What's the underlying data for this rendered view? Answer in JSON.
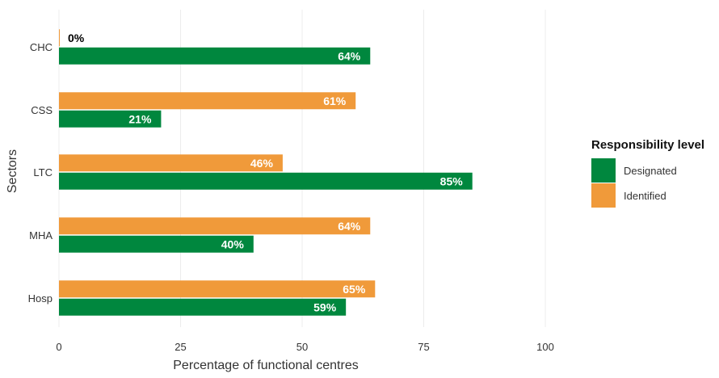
{
  "chart_data": {
    "type": "bar",
    "orientation": "horizontal",
    "title": "",
    "xlabel": "Percentage of functional centres",
    "ylabel": "Sectors",
    "xlim": [
      0,
      100
    ],
    "x_ticks": [
      "0",
      "25",
      "50",
      "75",
      "100"
    ],
    "x_tick_values": [
      0,
      25,
      50,
      75,
      100
    ],
    "grid": true,
    "categories": [
      "CHC",
      "CSS",
      "LTC",
      "MHA",
      "Hosp"
    ],
    "series": [
      {
        "name": "Identified",
        "color": "#F09A3A",
        "values": [
          0,
          61,
          46,
          64,
          65
        ],
        "labels": [
          "0%",
          "61%",
          "46%",
          "64%",
          "65%"
        ]
      },
      {
        "name": "Designated",
        "color": "#00873E",
        "values": [
          64,
          21,
          85,
          40,
          59
        ],
        "labels": [
          "64%",
          "21%",
          "85%",
          "40%",
          "59%"
        ]
      }
    ],
    "legend": {
      "title": "Responsibility level",
      "placement": "right",
      "items": [
        {
          "label": "Designated",
          "color": "#00873E"
        },
        {
          "label": "Identified",
          "color": "#F09A3A"
        }
      ]
    }
  }
}
